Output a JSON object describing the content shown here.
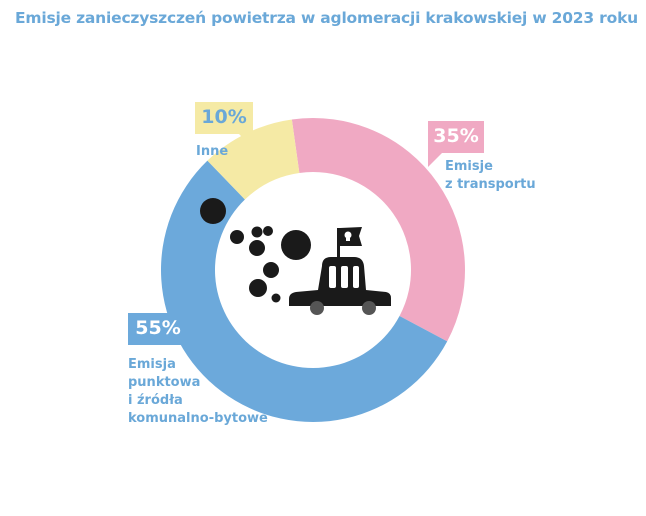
{
  "title": "Emisje zanieczyszczeń powietrza w aglomeracji krakowskiej w 2023 roku",
  "chart_data": {
    "type": "pie",
    "title": "Emisje zanieczyszczeń powietrza w aglomeracji krakowskiej w 2023 roku",
    "slices": [
      {
        "label_lines": [
          "Emisje",
          "z transportu"
        ],
        "value": 35,
        "value_text": "35%",
        "color": "#f0a9c3"
      },
      {
        "label_lines": [
          "Emisja",
          "punktowa",
          "i źródła",
          "komunalno-bytowe"
        ],
        "value": 55,
        "value_text": "55%",
        "color": "#6ca9db"
      },
      {
        "label_lines": [
          "Inne"
        ],
        "value": 10,
        "value_text": "10%",
        "color": "#f5eaa5"
      }
    ]
  },
  "colors": {
    "title": "#6aa8d8",
    "label": "#6aa8d8",
    "illustration": "#1a1a1a"
  },
  "icons": [
    "car-with-pirate-flag-icon",
    "smoke-puffs-icon"
  ]
}
